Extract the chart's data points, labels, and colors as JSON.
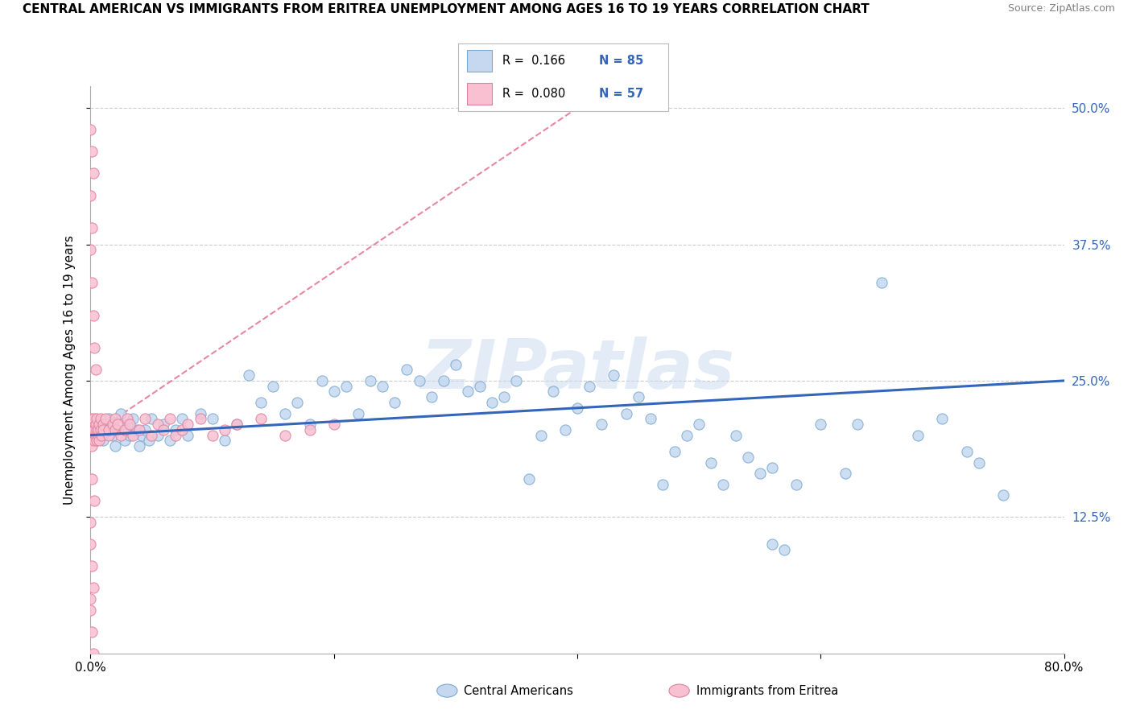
{
  "title": "CENTRAL AMERICAN VS IMMIGRANTS FROM ERITREA UNEMPLOYMENT AMONG AGES 16 TO 19 YEARS CORRELATION CHART",
  "source": "Source: ZipAtlas.com",
  "ylabel": "Unemployment Among Ages 16 to 19 years",
  "xlim": [
    0.0,
    0.8
  ],
  "ylim": [
    0.0,
    0.52
  ],
  "ytick_vals": [
    0.125,
    0.25,
    0.375,
    0.5
  ],
  "ytick_labels": [
    "12.5%",
    "25.0%",
    "37.5%",
    "50.0%"
  ],
  "xtick_vals": [
    0.0,
    0.2,
    0.4,
    0.6,
    0.8
  ],
  "xtick_labels": [
    "0.0%",
    "",
    "",
    "",
    "80.0%"
  ],
  "legend_r1": "R =  0.166",
  "legend_n1": "N = 85",
  "legend_r2": "R =  0.080",
  "legend_n2": "N = 57",
  "blue_fill": "#c5d8f0",
  "blue_edge": "#7aaad0",
  "pink_fill": "#f8c0d0",
  "pink_edge": "#e080a0",
  "trend_blue": "#3366bb",
  "trend_pink": "#dd5577",
  "right_tick_color": "#3366bb",
  "watermark": "ZIPatlas",
  "background": "#ffffff",
  "grid_color": "#cccccc",
  "ca_x": [
    0.005,
    0.008,
    0.01,
    0.012,
    0.015,
    0.018,
    0.02,
    0.022,
    0.025,
    0.028,
    0.03,
    0.032,
    0.035,
    0.038,
    0.04,
    0.042,
    0.045,
    0.048,
    0.05,
    0.055,
    0.06,
    0.065,
    0.07,
    0.075,
    0.08,
    0.09,
    0.1,
    0.11,
    0.12,
    0.13,
    0.14,
    0.15,
    0.16,
    0.17,
    0.18,
    0.19,
    0.2,
    0.21,
    0.22,
    0.23,
    0.24,
    0.25,
    0.26,
    0.27,
    0.28,
    0.29,
    0.3,
    0.31,
    0.32,
    0.33,
    0.34,
    0.35,
    0.36,
    0.37,
    0.38,
    0.39,
    0.4,
    0.41,
    0.42,
    0.43,
    0.44,
    0.45,
    0.46,
    0.47,
    0.48,
    0.49,
    0.5,
    0.51,
    0.52,
    0.53,
    0.54,
    0.55,
    0.56,
    0.57,
    0.58,
    0.6,
    0.62,
    0.65,
    0.68,
    0.7,
    0.72,
    0.73,
    0.75,
    0.63,
    0.56
  ],
  "ca_y": [
    0.2,
    0.21,
    0.195,
    0.205,
    0.215,
    0.2,
    0.19,
    0.205,
    0.22,
    0.195,
    0.21,
    0.2,
    0.215,
    0.205,
    0.19,
    0.2,
    0.205,
    0.195,
    0.215,
    0.2,
    0.21,
    0.195,
    0.205,
    0.215,
    0.2,
    0.22,
    0.215,
    0.195,
    0.21,
    0.255,
    0.23,
    0.245,
    0.22,
    0.23,
    0.21,
    0.25,
    0.24,
    0.245,
    0.22,
    0.25,
    0.245,
    0.23,
    0.26,
    0.25,
    0.235,
    0.25,
    0.265,
    0.24,
    0.245,
    0.23,
    0.235,
    0.25,
    0.16,
    0.2,
    0.24,
    0.205,
    0.225,
    0.245,
    0.21,
    0.255,
    0.22,
    0.235,
    0.215,
    0.155,
    0.185,
    0.2,
    0.21,
    0.175,
    0.155,
    0.2,
    0.18,
    0.165,
    0.17,
    0.095,
    0.155,
    0.21,
    0.165,
    0.34,
    0.2,
    0.215,
    0.185,
    0.175,
    0.145,
    0.21,
    0.1
  ],
  "er_x": [
    0.0,
    0.0,
    0.0,
    0.0,
    0.0,
    0.001,
    0.001,
    0.001,
    0.002,
    0.002,
    0.002,
    0.003,
    0.003,
    0.003,
    0.004,
    0.004,
    0.005,
    0.005,
    0.005,
    0.006,
    0.006,
    0.007,
    0.007,
    0.008,
    0.008,
    0.009,
    0.01,
    0.01,
    0.012,
    0.015,
    0.015,
    0.018,
    0.02,
    0.02,
    0.022,
    0.025,
    0.028,
    0.03,
    0.032,
    0.035,
    0.04,
    0.045,
    0.05,
    0.055,
    0.06,
    0.065,
    0.07,
    0.075,
    0.08,
    0.09,
    0.1,
    0.11,
    0.12,
    0.14,
    0.16,
    0.18,
    0.2
  ],
  "er_y": [
    0.2,
    0.205,
    0.195,
    0.215,
    0.205,
    0.21,
    0.195,
    0.19,
    0.205,
    0.2,
    0.215,
    0.2,
    0.195,
    0.205,
    0.2,
    0.21,
    0.205,
    0.195,
    0.215,
    0.2,
    0.205,
    0.195,
    0.21,
    0.205,
    0.215,
    0.2,
    0.21,
    0.205,
    0.215,
    0.2,
    0.205,
    0.21,
    0.205,
    0.215,
    0.21,
    0.2,
    0.205,
    0.215,
    0.21,
    0.2,
    0.205,
    0.215,
    0.2,
    0.21,
    0.205,
    0.215,
    0.2,
    0.205,
    0.21,
    0.215,
    0.2,
    0.205,
    0.21,
    0.215,
    0.2,
    0.205,
    0.21
  ],
  "er_outlier_x": [
    0.0,
    0.001,
    0.002,
    0.0,
    0.001,
    0.0,
    0.001,
    0.002,
    0.003,
    0.004,
    0.0,
    0.001,
    0.002,
    0.0,
    0.001,
    0.002,
    0.003,
    0.0,
    0.001,
    0.0
  ],
  "er_outlier_y": [
    0.48,
    0.46,
    0.44,
    0.42,
    0.39,
    0.37,
    0.34,
    0.31,
    0.28,
    0.26,
    0.1,
    0.08,
    0.06,
    0.04,
    0.02,
    0.0,
    0.14,
    0.12,
    0.16,
    0.05
  ]
}
